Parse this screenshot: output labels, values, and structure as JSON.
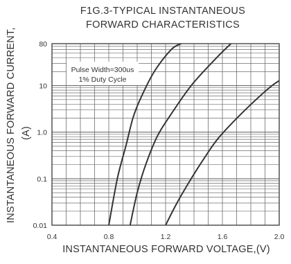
{
  "chart_data": {
    "type": "line",
    "title": "F1G.3-TYPICAL INSTANTANEOUS",
    "title_line2": "FORWARD CHARACTERISTICS",
    "xlabel": "INSTANTANEOUS FORWARD VOLTAGE,(V)",
    "ylabel": "INSTANTANEOUS FORWARD CURRENT,",
    "ylabel_unit": "(A)",
    "xlim": [
      0.4,
      2.0
    ],
    "ylim": [
      0.01,
      80
    ],
    "yscale": "log",
    "x_ticks": [
      "0.4",
      "0.8",
      "1.2",
      "1.6",
      "2.0"
    ],
    "x_tick_values": [
      0.4,
      0.8,
      1.2,
      1.6,
      2.0
    ],
    "y_ticks": [
      "0.01",
      "0.1",
      "1.0",
      "10",
      "80"
    ],
    "y_tick_values": [
      0.01,
      0.1,
      1,
      10,
      80
    ],
    "grid": true,
    "annotation": [
      "Pulse Width=300us",
      "1% Duty Cycle"
    ],
    "line_color": "#333333",
    "grid_color": "#6d6d6d",
    "series": [
      {
        "x": [
          0.8,
          0.86,
          0.92,
          0.97,
          1.02,
          1.12,
          1.24,
          1.31
        ],
        "y": [
          0.01,
          0.1,
          0.5,
          2,
          5,
          20,
          60,
          80
        ]
      },
      {
        "x": [
          0.95,
          1.0,
          1.06,
          1.14,
          1.22,
          1.38,
          1.56,
          1.66
        ],
        "y": [
          0.01,
          0.05,
          0.2,
          0.8,
          2,
          10,
          40,
          80
        ]
      },
      {
        "x": [
          1.2,
          1.28,
          1.38,
          1.48,
          1.58,
          1.76,
          1.93,
          2.02
        ],
        "y": [
          0.01,
          0.03,
          0.1,
          0.3,
          0.8,
          3,
          9,
          14
        ]
      }
    ]
  }
}
